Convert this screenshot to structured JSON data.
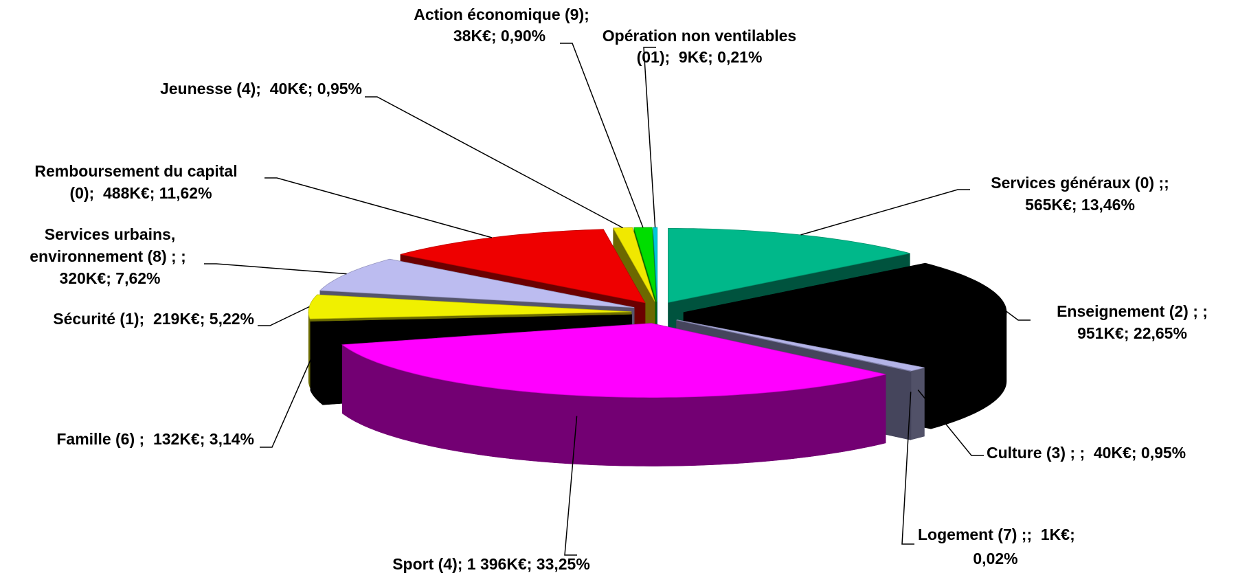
{
  "chart_data": {
    "type": "pie3d",
    "values": [
      13.46,
      22.65,
      0.95,
      0.02,
      33.25,
      3.14,
      5.22,
      7.62,
      11.62,
      0.95,
      0.9,
      0.21
    ],
    "value_labels": [
      [
        "Services généraux (0) ;;",
        "565K€; 13,46%"
      ],
      [
        "Enseignement (2) ; ;",
        "951K€; 22,65%"
      ],
      [
        "Culture (3) ; ;  40K€; 0,95%"
      ],
      [
        "Logement (7) ;;  1K€;",
        "0,02%"
      ],
      [
        "Sport (4); 1 396K€; 33,25%"
      ],
      [
        "Famille (6) ;  132K€; 3,14%"
      ],
      [
        "Sécurité (1);  219K€; 5,22%"
      ],
      [
        "Services urbains,",
        "environnement (8) ; ;",
        "320K€; 7,62%"
      ],
      [
        "Remboursement du capital",
        "(0);  488K€; 11,62%"
      ],
      [
        "Jeunesse (4);  40K€; 0,95%"
      ],
      [
        "Action économique (9);",
        "38K€; 0,90%"
      ],
      [
        "Opération non ventilables",
        "(01);  9K€; 0,21%"
      ]
    ],
    "colors": [
      "#00b88a",
      "#000000",
      "#b4b4e8",
      "#9999cc",
      "#ff00ff",
      "#000000",
      "#f0f000",
      "#bcbcf0",
      "#ee0000",
      "#f0e800",
      "#00dd00",
      "#00c8d8"
    ]
  }
}
